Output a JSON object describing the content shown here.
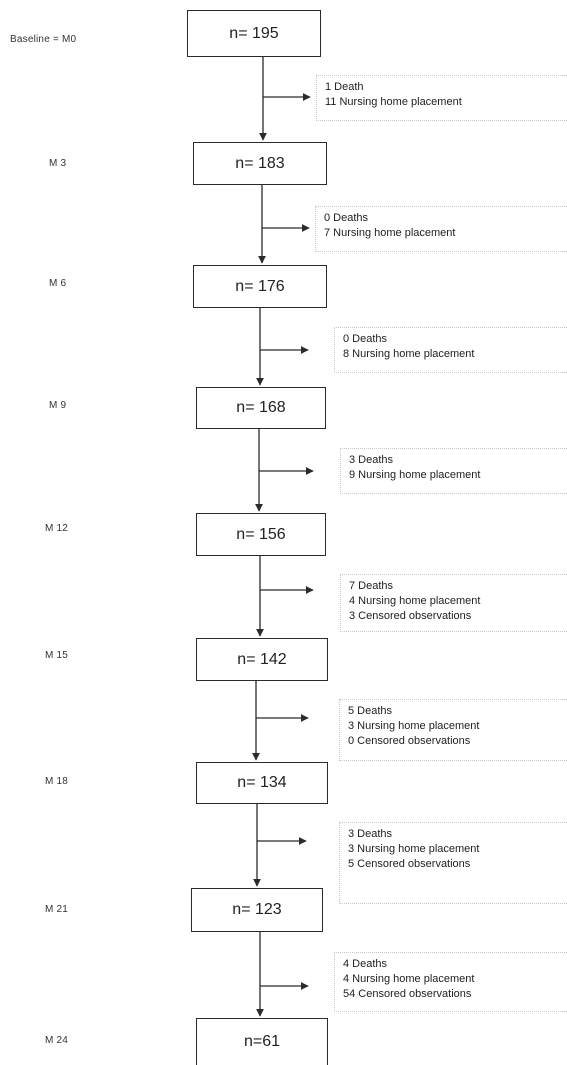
{
  "stages": [
    {
      "timepoint": "Baseline = M0",
      "n": "n= 195",
      "exits": [
        "1 Death",
        "11  Nursing home  placement"
      ]
    },
    {
      "timepoint": "M 3",
      "n": "n= 183",
      "exits": [
        "0 Deaths",
        "7  Nursing home placement"
      ]
    },
    {
      "timepoint": "M 6",
      "n": "n= 176",
      "exits": [
        "0   Deaths",
        "8  Nursing home placement"
      ]
    },
    {
      "timepoint": "M 9",
      "n": "n= 168",
      "exits": [
        "3  Deaths",
        "9   Nursing home  placement"
      ]
    },
    {
      "timepoint": "M 12",
      "n": "n= 156",
      "exits": [
        "7  Deaths",
        "4 Nursing home placement",
        "3 Censored observations"
      ]
    },
    {
      "timepoint": "M 15",
      "n": "n= 142",
      "exits": [
        "5  Deaths",
        "3 Nursing home  placement",
        "0 Censored observations"
      ]
    },
    {
      "timepoint": "M 18",
      "n": "n= 134",
      "exits": [
        "3  Deaths",
        "3 Nursing home placement",
        "5 Censored observations"
      ]
    },
    {
      "timepoint": "M 21",
      "n": "n= 123",
      "exits": [
        "4  Deaths",
        "4 Nursing home placement",
        "54 Censored observations"
      ]
    },
    {
      "timepoint": "M  24",
      "n": "n=61",
      "exits": []
    }
  ],
  "colors": {
    "line": "#2b2b2b",
    "text": "#222222",
    "exit_border": "#c8c8c8"
  }
}
